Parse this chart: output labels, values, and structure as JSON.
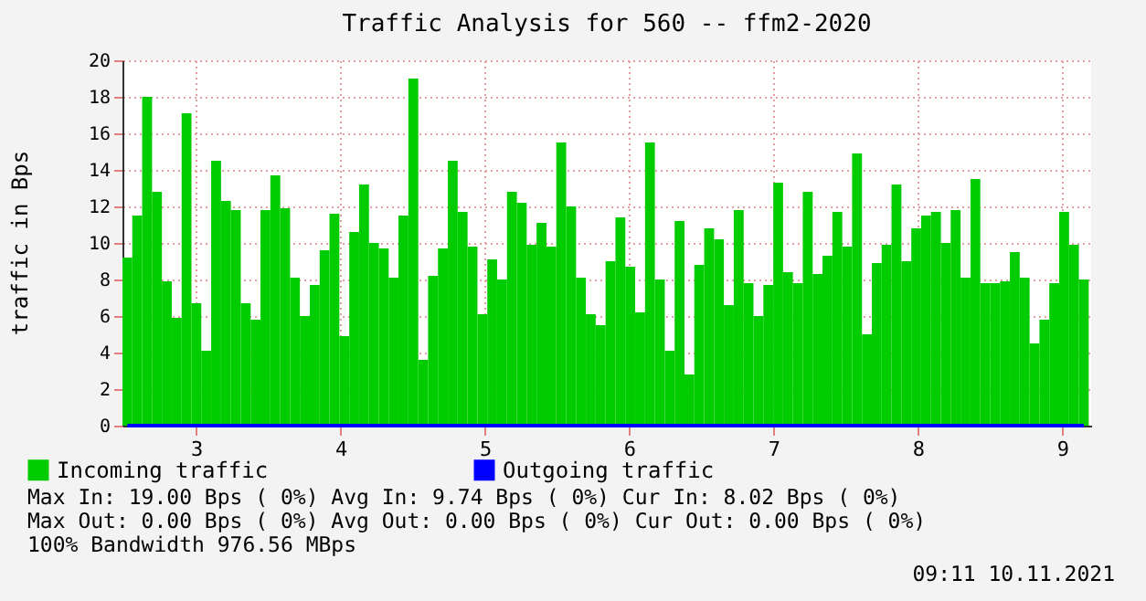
{
  "chart_data": {
    "type": "bar",
    "title": "Traffic Analysis for 560 -- ffm2-2020",
    "ylabel": "traffic in Bps",
    "x": [
      2.524,
      2.592,
      2.661,
      2.729,
      2.797,
      2.866,
      2.934,
      3.002,
      3.07,
      3.139,
      3.207,
      3.275,
      3.344,
      3.412,
      3.48,
      3.549,
      3.617,
      3.685,
      3.753,
      3.822,
      3.89,
      3.958,
      4.027,
      4.095,
      4.163,
      4.232,
      4.3,
      4.368,
      4.436,
      4.505,
      4.573,
      4.641,
      4.71,
      4.778,
      4.846,
      4.915,
      4.983,
      5.051,
      5.119,
      5.188,
      5.256,
      5.324,
      5.393,
      5.461,
      5.529,
      5.598,
      5.666,
      5.734,
      5.802,
      5.871,
      5.939,
      6.007,
      6.076,
      6.144,
      6.212,
      6.281,
      6.349,
      6.417,
      6.485,
      6.554,
      6.622,
      6.69,
      6.759,
      6.827,
      6.895,
      6.964,
      7.032,
      7.1,
      7.168,
      7.237,
      7.305,
      7.373,
      7.442,
      7.51,
      7.578,
      7.647,
      7.715,
      7.783,
      7.851,
      7.92,
      7.988,
      8.056,
      8.125,
      8.193,
      8.261,
      8.33,
      8.398,
      8.466,
      8.534,
      8.603,
      8.671,
      8.739,
      8.808,
      8.876,
      8.944,
      9.013,
      9.081,
      9.149
    ],
    "series": [
      {
        "name": "Incoming traffic",
        "color": "#00cc00",
        "values": [
          9.2,
          11.5,
          18.0,
          12.8,
          7.9,
          5.9,
          17.1,
          6.7,
          4.1,
          14.5,
          12.3,
          11.8,
          6.7,
          5.8,
          11.8,
          13.7,
          11.9,
          8.1,
          6.0,
          7.7,
          9.6,
          11.6,
          4.9,
          10.6,
          13.2,
          10.0,
          9.7,
          8.1,
          11.5,
          19.0,
          3.6,
          8.2,
          9.7,
          14.5,
          11.7,
          9.8,
          6.1,
          9.1,
          8.0,
          12.8,
          12.2,
          9.9,
          11.1,
          9.8,
          15.5,
          12.0,
          8.1,
          6.1,
          5.5,
          9.0,
          11.4,
          8.7,
          6.2,
          15.5,
          8.0,
          4.1,
          11.2,
          2.8,
          8.8,
          10.8,
          10.2,
          6.6,
          11.8,
          7.8,
          6.0,
          7.7,
          13.3,
          8.4,
          7.8,
          12.8,
          8.3,
          9.3,
          11.7,
          9.8,
          14.9,
          5.0,
          8.9,
          9.9,
          13.2,
          9.0,
          10.8,
          11.5,
          11.7,
          10.0,
          11.8,
          8.1,
          13.5,
          7.8,
          7.8,
          7.9,
          9.5,
          8.1,
          4.5,
          5.8,
          7.8,
          11.7,
          9.9,
          8.0
        ]
      },
      {
        "name": "Outgoing traffic",
        "color": "#0000ff",
        "type": "line",
        "values": [
          0,
          0,
          0,
          0,
          0,
          0,
          0,
          0,
          0,
          0,
          0,
          0,
          0,
          0,
          0,
          0,
          0,
          0,
          0,
          0,
          0,
          0,
          0,
          0,
          0,
          0,
          0,
          0,
          0,
          0,
          0,
          0,
          0,
          0,
          0,
          0,
          0,
          0,
          0,
          0,
          0,
          0,
          0,
          0,
          0,
          0,
          0,
          0,
          0,
          0,
          0,
          0,
          0,
          0,
          0,
          0,
          0,
          0,
          0,
          0,
          0,
          0,
          0,
          0,
          0,
          0,
          0,
          0,
          0,
          0,
          0,
          0,
          0,
          0,
          0,
          0,
          0,
          0,
          0,
          0,
          0,
          0,
          0,
          0,
          0,
          0,
          0,
          0,
          0,
          0,
          0,
          0,
          0,
          0,
          0,
          0,
          0,
          0
        ]
      }
    ],
    "xlim": [
      2.49,
      9.2
    ],
    "xticks": [
      3,
      4,
      5,
      6,
      7,
      8,
      9
    ],
    "ylim": [
      0,
      20
    ],
    "yticks": [
      0,
      2,
      4,
      6,
      8,
      10,
      12,
      14,
      16,
      18,
      20
    ],
    "grid": true,
    "legend": "bottom left",
    "annotations": [
      "Max In:  19.00  Bps ( 0%)  Avg In:   9.74  Bps ( 0%)  Cur In:   8.02  Bps ( 0%)",
      "Max Out:  0.00  Bps ( 0%)  Avg Out:  0.00  Bps ( 0%)  Cur Out:  0.00  Bps ( 0%)",
      "100% Bandwidth 976.56 MBps",
      "09:11 10.11.2021"
    ]
  }
}
